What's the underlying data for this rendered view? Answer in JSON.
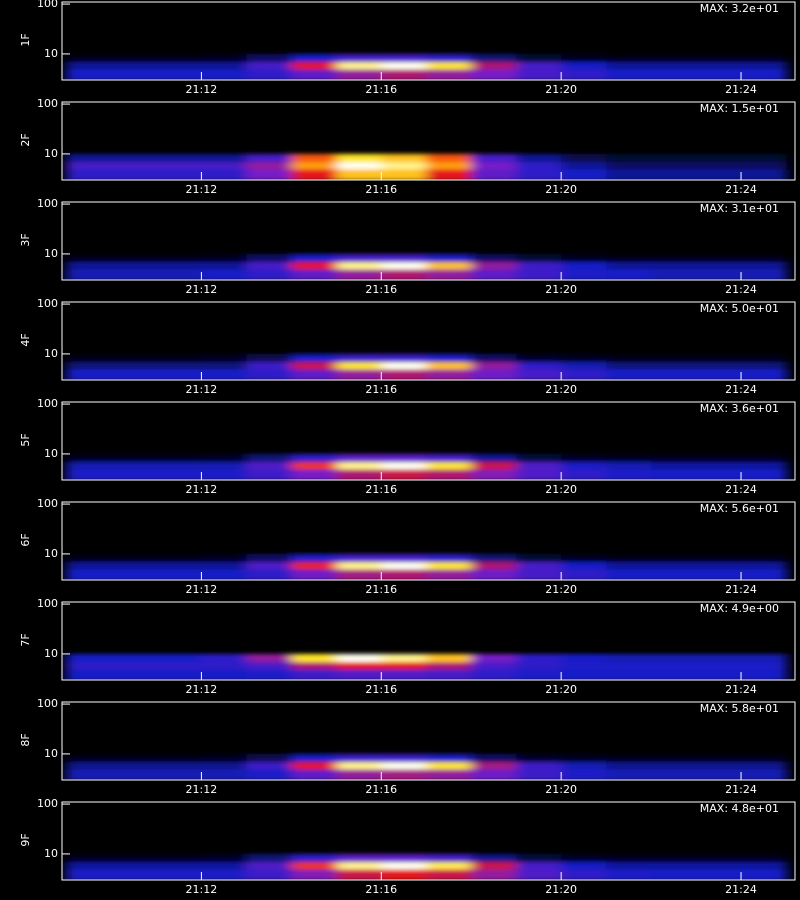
{
  "chart_data": [
    {
      "type": "heatmap",
      "ylabel": "1F",
      "annotation": "MAX: 3.2e+01",
      "log_y": true,
      "xlim": [
        8.9,
        25.2
      ],
      "xticks": [
        {
          "value": 12,
          "label": "21:12"
        },
        {
          "value": 16,
          "label": "21:16"
        },
        {
          "value": 20,
          "label": "21:20"
        },
        {
          "value": 24,
          "label": "21:24"
        }
      ],
      "ylim": [
        3,
        110
      ],
      "yticks": [
        10,
        100
      ],
      "zlim": [
        0,
        1
      ],
      "xbins": [
        9,
        10,
        11,
        12,
        13,
        14,
        15,
        16,
        17,
        18,
        19,
        20,
        21,
        22,
        23,
        24,
        25
      ],
      "ybins": [
        3,
        5,
        7,
        10
      ],
      "values": [
        [
          0.2,
          0.2,
          0.2,
          0.2,
          0.25,
          0.35,
          0.45,
          0.5,
          0.45,
          0.4,
          0.3,
          0.25,
          0.2,
          0.2,
          0.2,
          0.2
        ],
        [
          0.15,
          0.15,
          0.15,
          0.15,
          0.3,
          0.6,
          0.95,
          1,
          0.9,
          0.5,
          0.3,
          0.2,
          0.15,
          0.15,
          0.15,
          0.15
        ],
        [
          0.02,
          0.02,
          0.02,
          0.03,
          0.1,
          0.2,
          0.3,
          0.3,
          0.25,
          0.12,
          0.05,
          0.03,
          0.02,
          0.02,
          0.02,
          0.02
        ]
      ]
    },
    {
      "type": "heatmap",
      "ylabel": "2F",
      "annotation": "MAX: 1.5e+01",
      "log_y": true,
      "xlim": [
        8.9,
        25.2
      ],
      "xticks": [
        {
          "value": 12,
          "label": "21:12"
        },
        {
          "value": 16,
          "label": "21:16"
        },
        {
          "value": 20,
          "label": "21:20"
        },
        {
          "value": 24,
          "label": "21:24"
        }
      ],
      "ylim": [
        3,
        110
      ],
      "yticks": [
        10,
        100
      ],
      "zlim": [
        0,
        1
      ],
      "xbins": [
        9,
        10,
        11,
        12,
        13,
        14,
        15,
        16,
        17,
        18,
        19,
        20,
        21,
        22,
        23,
        24,
        25
      ],
      "ybins": [
        3,
        5,
        7,
        10
      ],
      "values": [
        [
          0.25,
          0.25,
          0.25,
          0.25,
          0.4,
          0.6,
          0.85,
          0.85,
          0.6,
          0.35,
          0.25,
          0.2,
          0.15,
          0.15,
          0.15,
          0.15
        ],
        [
          0.3,
          0.3,
          0.3,
          0.3,
          0.45,
          0.8,
          1,
          0.95,
          0.8,
          0.4,
          0.25,
          0.15,
          0.1,
          0.1,
          0.1,
          0.1
        ],
        [
          0.15,
          0.15,
          0.15,
          0.15,
          0.3,
          0.7,
          0.9,
          0.85,
          0.7,
          0.3,
          0.15,
          0.08,
          0.05,
          0.05,
          0.05,
          0.05
        ]
      ]
    },
    {
      "type": "heatmap",
      "ylabel": "3F",
      "annotation": "MAX: 3.1e+01",
      "log_y": true,
      "xlim": [
        8.9,
        25.2
      ],
      "xticks": [
        {
          "value": 12,
          "label": "21:12"
        },
        {
          "value": 16,
          "label": "21:16"
        },
        {
          "value": 20,
          "label": "21:20"
        },
        {
          "value": 24,
          "label": "21:24"
        }
      ],
      "ylim": [
        3,
        110
      ],
      "yticks": [
        10,
        100
      ],
      "zlim": [
        0,
        1
      ],
      "xbins": [
        9,
        10,
        11,
        12,
        13,
        14,
        15,
        16,
        17,
        18,
        19,
        20,
        21,
        22,
        23,
        24,
        25
      ],
      "ybins": [
        3,
        5,
        7,
        10
      ],
      "values": [
        [
          0.18,
          0.18,
          0.18,
          0.2,
          0.25,
          0.35,
          0.45,
          0.5,
          0.45,
          0.35,
          0.28,
          0.22,
          0.2,
          0.18,
          0.18,
          0.18
        ],
        [
          0.15,
          0.15,
          0.15,
          0.15,
          0.3,
          0.6,
          0.95,
          1,
          0.85,
          0.45,
          0.28,
          0.2,
          0.15,
          0.15,
          0.15,
          0.15
        ],
        [
          0.02,
          0.02,
          0.02,
          0.03,
          0.1,
          0.2,
          0.3,
          0.3,
          0.22,
          0.1,
          0.05,
          0.03,
          0.02,
          0.02,
          0.02,
          0.02
        ]
      ]
    },
    {
      "type": "heatmap",
      "ylabel": "4F",
      "annotation": "MAX: 5.0e+01",
      "log_y": true,
      "xlim": [
        8.9,
        25.2
      ],
      "xticks": [
        {
          "value": 12,
          "label": "21:12"
        },
        {
          "value": 16,
          "label": "21:16"
        },
        {
          "value": 20,
          "label": "21:20"
        },
        {
          "value": 24,
          "label": "21:24"
        }
      ],
      "ylim": [
        3,
        110
      ],
      "yticks": [
        10,
        100
      ],
      "zlim": [
        0,
        1
      ],
      "xbins": [
        9,
        10,
        11,
        12,
        13,
        14,
        15,
        16,
        17,
        18,
        19,
        20,
        21,
        22,
        23,
        24,
        25
      ],
      "ybins": [
        3,
        5,
        7,
        10
      ],
      "values": [
        [
          0.2,
          0.2,
          0.2,
          0.2,
          0.25,
          0.35,
          0.45,
          0.5,
          0.45,
          0.38,
          0.3,
          0.25,
          0.2,
          0.2,
          0.2,
          0.2
        ],
        [
          0.12,
          0.12,
          0.12,
          0.12,
          0.28,
          0.55,
          0.9,
          1,
          0.85,
          0.45,
          0.25,
          0.18,
          0.12,
          0.12,
          0.12,
          0.12
        ],
        [
          0.02,
          0.02,
          0.02,
          0.03,
          0.08,
          0.2,
          0.28,
          0.28,
          0.22,
          0.1,
          0.04,
          0.03,
          0.02,
          0.02,
          0.02,
          0.02
        ]
      ]
    },
    {
      "type": "heatmap",
      "ylabel": "5F",
      "annotation": "MAX: 3.6e+01",
      "log_y": true,
      "xlim": [
        8.9,
        25.2
      ],
      "xticks": [
        {
          "value": 12,
          "label": "21:12"
        },
        {
          "value": 16,
          "label": "21:16"
        },
        {
          "value": 20,
          "label": "21:20"
        },
        {
          "value": 24,
          "label": "21:24"
        }
      ],
      "ylim": [
        3,
        110
      ],
      "yticks": [
        10,
        100
      ],
      "zlim": [
        0,
        1
      ],
      "xbins": [
        9,
        10,
        11,
        12,
        13,
        14,
        15,
        16,
        17,
        18,
        19,
        20,
        21,
        22,
        23,
        24,
        25
      ],
      "ybins": [
        3,
        5,
        7,
        10
      ],
      "values": [
        [
          0.22,
          0.22,
          0.22,
          0.22,
          0.28,
          0.4,
          0.5,
          0.55,
          0.5,
          0.42,
          0.32,
          0.25,
          0.22,
          0.2,
          0.2,
          0.2
        ],
        [
          0.18,
          0.18,
          0.18,
          0.18,
          0.32,
          0.65,
          0.95,
          1,
          0.9,
          0.55,
          0.32,
          0.22,
          0.18,
          0.16,
          0.16,
          0.16
        ],
        [
          0.03,
          0.03,
          0.03,
          0.04,
          0.12,
          0.25,
          0.35,
          0.35,
          0.3,
          0.15,
          0.06,
          0.04,
          0.03,
          0.03,
          0.03,
          0.03
        ]
      ]
    },
    {
      "type": "heatmap",
      "ylabel": "6F",
      "annotation": "MAX: 5.6e+01",
      "log_y": true,
      "xlim": [
        8.9,
        25.2
      ],
      "xticks": [
        {
          "value": 12,
          "label": "21:12"
        },
        {
          "value": 16,
          "label": "21:16"
        },
        {
          "value": 20,
          "label": "21:20"
        },
        {
          "value": 24,
          "label": "21:24"
        }
      ],
      "ylim": [
        3,
        110
      ],
      "yticks": [
        10,
        100
      ],
      "zlim": [
        0,
        1
      ],
      "xbins": [
        9,
        10,
        11,
        12,
        13,
        14,
        15,
        16,
        17,
        18,
        19,
        20,
        21,
        22,
        23,
        24,
        25
      ],
      "ybins": [
        3,
        5,
        7,
        10
      ],
      "values": [
        [
          0.2,
          0.2,
          0.2,
          0.2,
          0.25,
          0.38,
          0.48,
          0.5,
          0.45,
          0.38,
          0.3,
          0.25,
          0.2,
          0.2,
          0.2,
          0.2
        ],
        [
          0.15,
          0.15,
          0.15,
          0.15,
          0.32,
          0.62,
          0.95,
          1,
          0.9,
          0.5,
          0.3,
          0.2,
          0.15,
          0.15,
          0.15,
          0.15
        ],
        [
          0.02,
          0.02,
          0.02,
          0.03,
          0.1,
          0.22,
          0.3,
          0.3,
          0.25,
          0.12,
          0.05,
          0.03,
          0.02,
          0.02,
          0.02,
          0.02
        ]
      ]
    },
    {
      "type": "heatmap",
      "ylabel": "7F",
      "annotation": "MAX: 4.9e+00",
      "log_y": true,
      "xlim": [
        8.9,
        25.2
      ],
      "xticks": [
        {
          "value": 12,
          "label": "21:12"
        },
        {
          "value": 16,
          "label": "21:16"
        },
        {
          "value": 20,
          "label": "21:20"
        },
        {
          "value": 24,
          "label": "21:24"
        }
      ],
      "ylim": [
        3,
        110
      ],
      "yticks": [
        10,
        100
      ],
      "zlim": [
        0,
        1
      ],
      "xbins": [
        9,
        10,
        11,
        12,
        13,
        14,
        15,
        16,
        17,
        18,
        19,
        20,
        21,
        22,
        23,
        24,
        25
      ],
      "ybins": [
        3,
        5,
        7,
        10
      ],
      "values": [
        [
          0.2,
          0.2,
          0.2,
          0.2,
          0.22,
          0.28,
          0.32,
          0.32,
          0.3,
          0.25,
          0.22,
          0.2,
          0.2,
          0.2,
          0.2,
          0.2
        ],
        [
          0.25,
          0.25,
          0.25,
          0.25,
          0.3,
          0.5,
          0.6,
          0.6,
          0.5,
          0.3,
          0.25,
          0.22,
          0.22,
          0.22,
          0.22,
          0.22
        ],
        [
          0.2,
          0.2,
          0.2,
          0.25,
          0.45,
          0.9,
          1,
          0.95,
          0.85,
          0.4,
          0.25,
          0.2,
          0.18,
          0.18,
          0.18,
          0.18
        ]
      ]
    },
    {
      "type": "heatmap",
      "ylabel": "8F",
      "annotation": "MAX: 5.8e+01",
      "log_y": true,
      "xlim": [
        8.9,
        25.2
      ],
      "xticks": [
        {
          "value": 12,
          "label": "21:12"
        },
        {
          "value": 16,
          "label": "21:16"
        },
        {
          "value": 20,
          "label": "21:20"
        },
        {
          "value": 24,
          "label": "21:24"
        }
      ],
      "ylim": [
        3,
        110
      ],
      "yticks": [
        10,
        100
      ],
      "zlim": [
        0,
        1
      ],
      "xbins": [
        9,
        10,
        11,
        12,
        13,
        14,
        15,
        16,
        17,
        18,
        19,
        20,
        21,
        22,
        23,
        24,
        25
      ],
      "ybins": [
        3,
        5,
        7,
        10
      ],
      "values": [
        [
          0.18,
          0.18,
          0.18,
          0.18,
          0.22,
          0.35,
          0.45,
          0.48,
          0.45,
          0.38,
          0.28,
          0.22,
          0.18,
          0.18,
          0.18,
          0.18
        ],
        [
          0.14,
          0.14,
          0.14,
          0.14,
          0.28,
          0.6,
          0.95,
          1,
          0.9,
          0.48,
          0.28,
          0.18,
          0.14,
          0.14,
          0.14,
          0.14
        ],
        [
          0.02,
          0.02,
          0.02,
          0.03,
          0.08,
          0.2,
          0.28,
          0.28,
          0.22,
          0.1,
          0.04,
          0.03,
          0.02,
          0.02,
          0.02,
          0.02
        ]
      ]
    },
    {
      "type": "heatmap",
      "ylabel": "9F",
      "annotation": "MAX: 4.8e+01",
      "log_y": true,
      "xlim": [
        8.9,
        25.2
      ],
      "xticks": [
        {
          "value": 12,
          "label": "21:12"
        },
        {
          "value": 16,
          "label": "21:16"
        },
        {
          "value": 20,
          "label": "21:20"
        },
        {
          "value": 24,
          "label": "21:24"
        }
      ],
      "ylim": [
        3,
        110
      ],
      "yticks": [
        10,
        100
      ],
      "zlim": [
        0,
        1
      ],
      "xbins": [
        9,
        10,
        11,
        12,
        13,
        14,
        15,
        16,
        17,
        18,
        19,
        20,
        21,
        22,
        23,
        24,
        25
      ],
      "ybins": [
        3,
        5,
        7,
        10
      ],
      "values": [
        [
          0.22,
          0.22,
          0.22,
          0.22,
          0.28,
          0.42,
          0.55,
          0.6,
          0.55,
          0.45,
          0.32,
          0.25,
          0.22,
          0.2,
          0.2,
          0.2
        ],
        [
          0.16,
          0.16,
          0.16,
          0.16,
          0.32,
          0.65,
          0.95,
          1,
          0.92,
          0.55,
          0.3,
          0.2,
          0.16,
          0.16,
          0.16,
          0.16
        ],
        [
          0.03,
          0.03,
          0.03,
          0.04,
          0.12,
          0.25,
          0.35,
          0.35,
          0.3,
          0.14,
          0.06,
          0.04,
          0.03,
          0.03,
          0.03,
          0.03
        ]
      ]
    }
  ]
}
